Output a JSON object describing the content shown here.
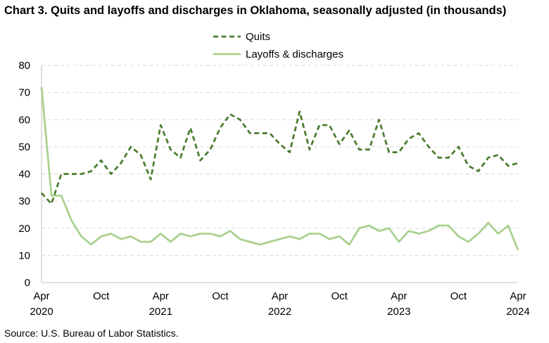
{
  "title": "Chart 3. Quits and layoffs and discharges in Oklahoma, seasonally adjusted (in thousands)",
  "source": "Source: U.S. Bureau of Labor Statistics.",
  "colors": {
    "quits": "#4a7c2f",
    "layoffs": "#a9d08e",
    "grid": "#d9d9d9",
    "axis": "#bfbfbf"
  },
  "chart_data": {
    "type": "line",
    "title": "Chart 3. Quits and layoffs and discharges in Oklahoma, seasonally adjusted (in thousands)",
    "ylim": [
      0,
      80
    ],
    "yticks": [
      "0",
      "10",
      "20",
      "30",
      "40",
      "50",
      "60",
      "70",
      "80"
    ],
    "xticks": [
      {
        "month": "Apr",
        "year": "2020",
        "index": 0
      },
      {
        "month": "Oct",
        "year": "",
        "index": 6
      },
      {
        "month": "Apr",
        "year": "2021",
        "index": 12
      },
      {
        "month": "Oct",
        "year": "",
        "index": 18
      },
      {
        "month": "Apr",
        "year": "2022",
        "index": 24
      },
      {
        "month": "Oct",
        "year": "",
        "index": 30
      },
      {
        "month": "Apr",
        "year": "2023",
        "index": 36
      },
      {
        "month": "Oct",
        "year": "",
        "index": 42
      },
      {
        "month": "Apr",
        "year": "2024",
        "index": 48
      }
    ],
    "x_range": "Apr 2020 – Apr 2024 (monthly)",
    "series": [
      {
        "name": "Quits",
        "style": "dashed",
        "values": [
          33,
          29,
          40,
          40,
          40,
          41,
          45,
          40,
          44,
          50,
          47,
          38,
          58,
          49,
          46,
          57,
          45,
          49,
          57,
          62,
          60,
          55,
          55,
          55,
          51,
          48,
          63,
          49,
          58,
          58,
          51,
          56,
          49,
          49,
          60,
          48,
          48,
          53,
          55,
          50,
          46,
          46,
          50,
          43,
          41,
          46,
          47,
          43,
          44
        ]
      },
      {
        "name": "Layoffs & discharges",
        "style": "solid",
        "values": [
          72,
          32,
          32,
          23,
          17,
          14,
          17,
          18,
          16,
          17,
          15,
          15,
          18,
          15,
          18,
          17,
          18,
          18,
          17,
          19,
          16,
          15,
          14,
          15,
          16,
          17,
          16,
          18,
          18,
          16,
          17,
          14,
          20,
          21,
          19,
          20,
          15,
          19,
          18,
          19,
          21,
          21,
          17,
          15,
          18,
          22,
          18,
          21,
          12
        ]
      }
    ],
    "legend": [
      "Quits",
      "Layoffs & discharges"
    ],
    "legend_position": "top-center"
  }
}
